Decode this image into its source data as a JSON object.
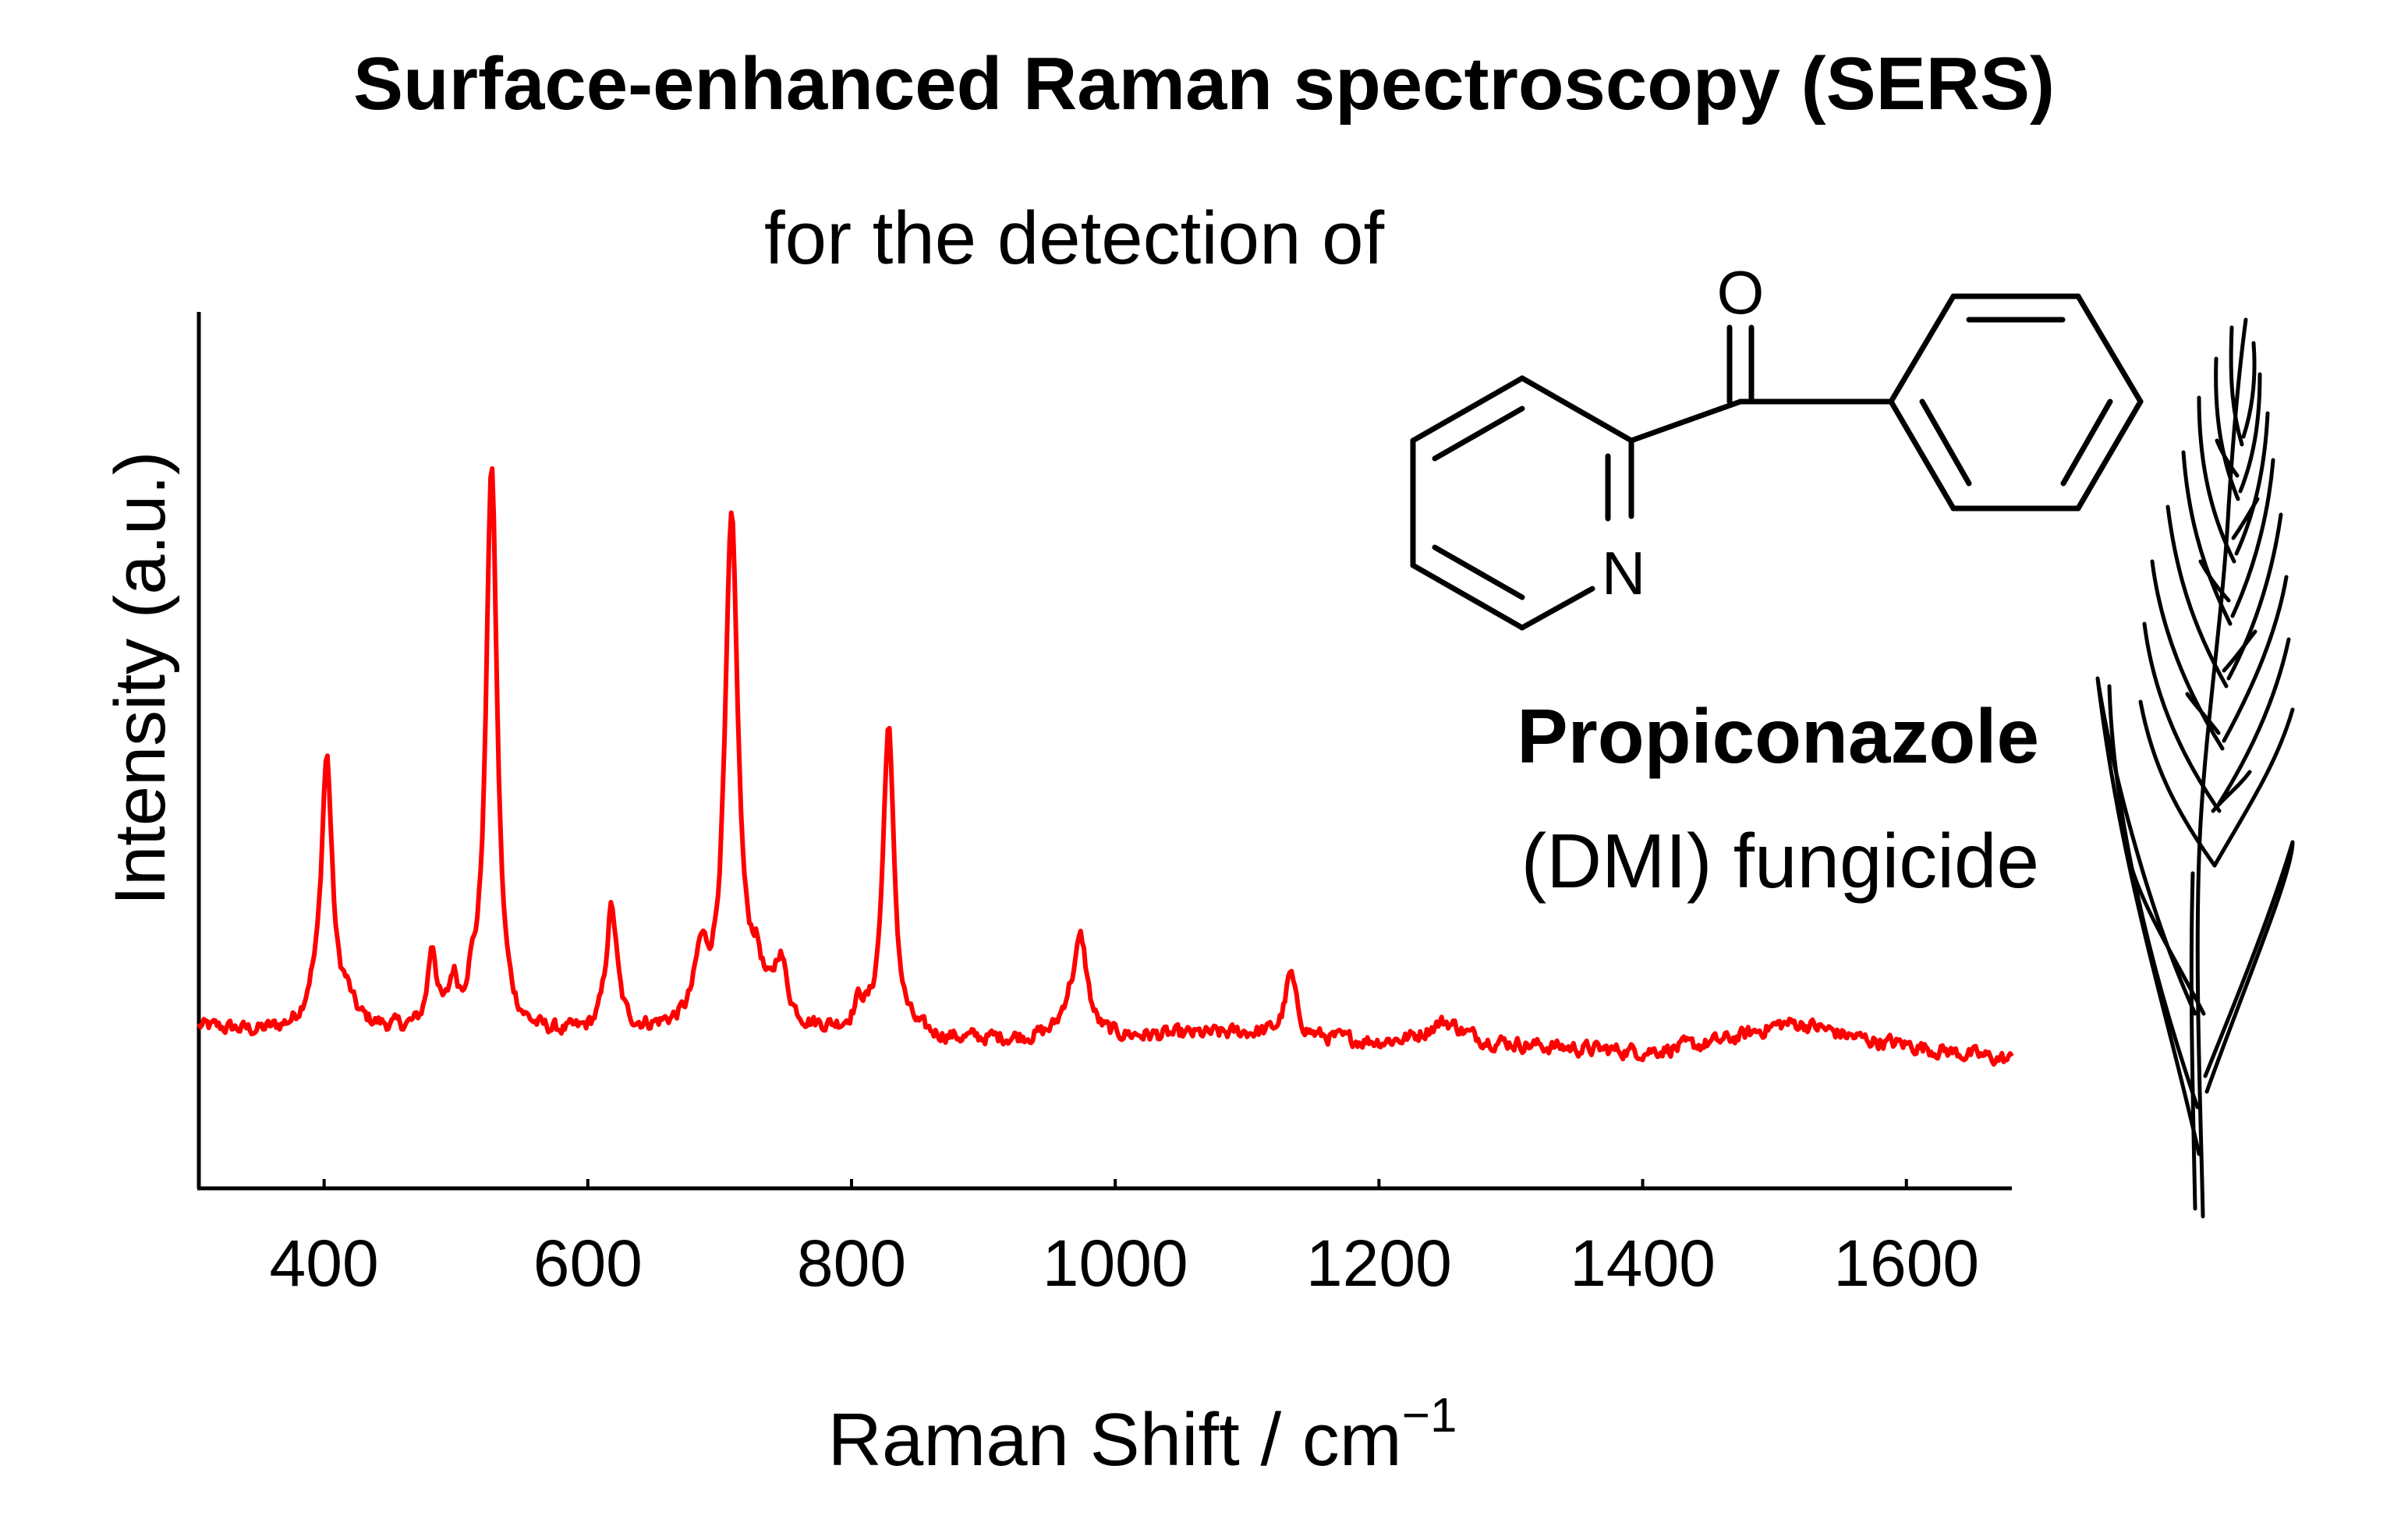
{
  "chart_data": {
    "type": "line",
    "title": "Surface-enhanced Raman spectroscopy (SERS)",
    "subtitle": "for the detection of",
    "xlabel": "Raman Shift / cm",
    "xlabel_sup": "−1",
    "ylabel": "Intensity (a.u.)",
    "xlim": [
      305,
      1680
    ],
    "ylim": [
      0,
      100
    ],
    "xticks": [
      400,
      600,
      800,
      1000,
      1200,
      1400,
      1600
    ],
    "yticks_shown": false,
    "grid": false,
    "series": [
      {
        "color": "#ff0000",
        "peaks": [
          {
            "x": 390,
            "y": 2.4,
            "w": 6
          },
          {
            "x": 402,
            "y": 38.2,
            "w": 5
          },
          {
            "x": 417,
            "y": 3.0,
            "w": 6
          },
          {
            "x": 482,
            "y": 11.6,
            "w": 4
          },
          {
            "x": 498,
            "y": 6.0,
            "w": 4
          },
          {
            "x": 512,
            "y": 4.0,
            "w": 5
          },
          {
            "x": 527,
            "y": 81.5,
            "w": 5
          },
          {
            "x": 618,
            "y": 17.9,
            "w": 5
          },
          {
            "x": 686,
            "y": 9.0,
            "w": 6
          },
          {
            "x": 709,
            "y": 72.0,
            "w": 6
          },
          {
            "x": 728,
            "y": 6.5,
            "w": 6
          },
          {
            "x": 746,
            "y": 9.0,
            "w": 6
          },
          {
            "x": 806,
            "y": 3.5,
            "w": 5
          },
          {
            "x": 828,
            "y": 44.2,
            "w": 5
          },
          {
            "x": 965,
            "y": 3.5,
            "w": 7
          },
          {
            "x": 974,
            "y": 13.0,
            "w": 6
          },
          {
            "x": 1133,
            "y": 8.8,
            "w": 5
          },
          {
            "x": 1250,
            "y": 3.2,
            "w": 18
          },
          {
            "x": 1515,
            "y": 3.5,
            "w": 45
          }
        ],
        "baseline": [
          [
            305,
            2.0
          ],
          [
            350,
            1.2
          ],
          [
            420,
            1.8
          ],
          [
            480,
            0.8
          ],
          [
            550,
            0.5
          ],
          [
            600,
            0.5
          ],
          [
            660,
            1.2
          ],
          [
            780,
            1.0
          ],
          [
            880,
            0.0
          ],
          [
            1000,
            0.4
          ],
          [
            1100,
            1.0
          ],
          [
            1200,
            -0.5
          ],
          [
            1300,
            -0.8
          ],
          [
            1400,
            -2.0
          ],
          [
            1500,
            -1.0
          ],
          [
            1600,
            -1.3
          ],
          [
            1680,
            -3.0
          ]
        ],
        "noise_amplitude": 0.9
      }
    ]
  },
  "annotations": {
    "compound_name": "Propiconazole",
    "compound_class": "(DMI) fungicide",
    "structure_atoms": {
      "oxygen": "O",
      "nitrogen": "N"
    }
  }
}
